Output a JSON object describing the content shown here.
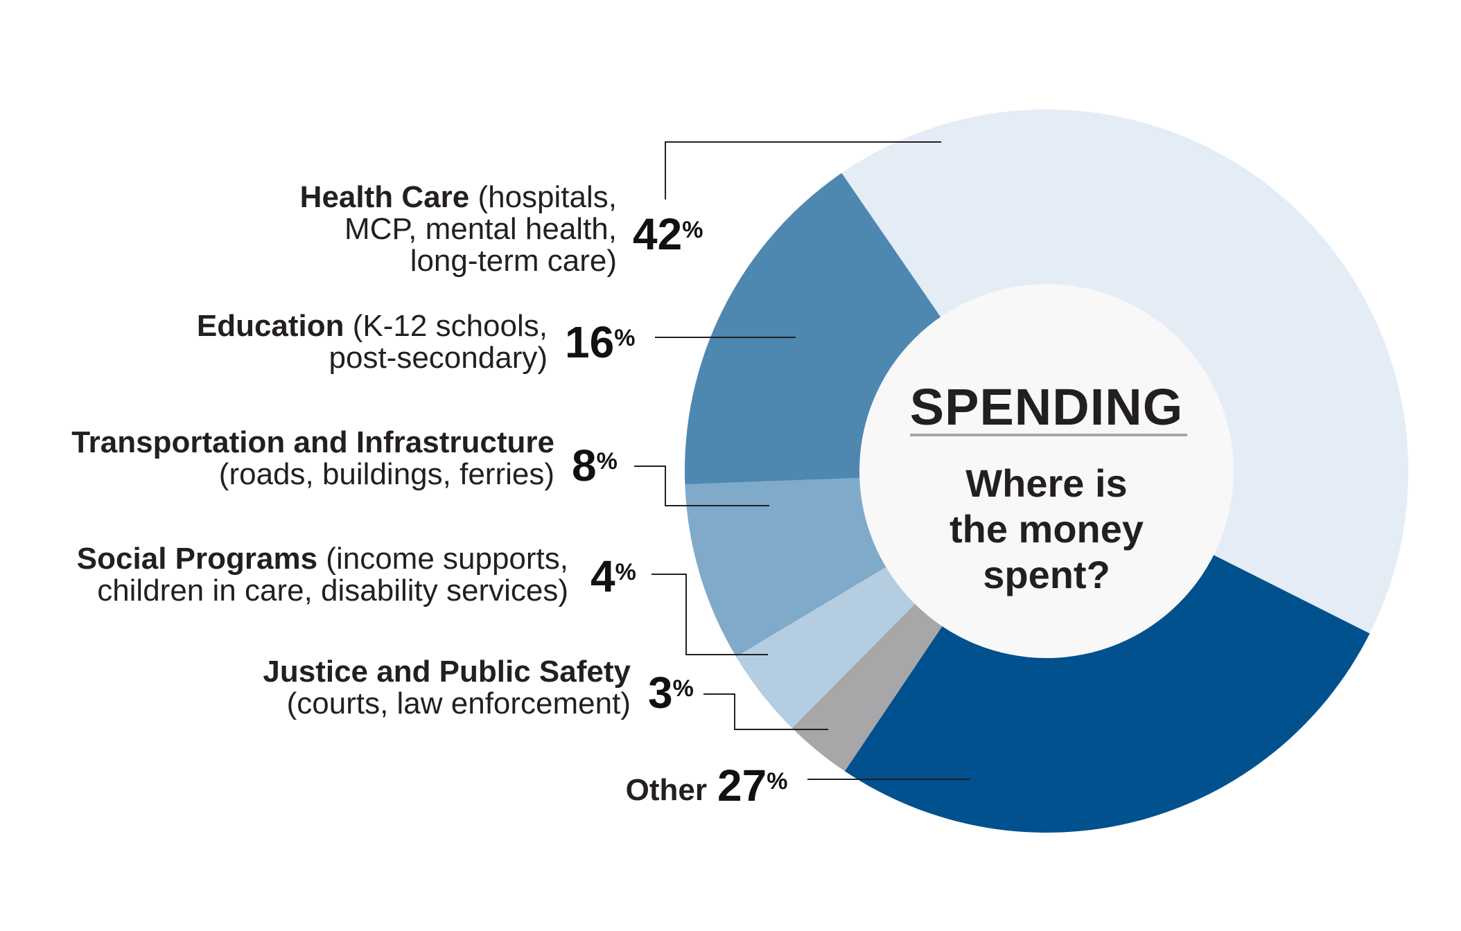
{
  "center": {
    "title": "SPENDING",
    "subtitle_line1": "Where is",
    "subtitle_line2": "the money",
    "subtitle_line3": "spent?"
  },
  "colors": {
    "health": "#e4ecf5",
    "education": "#4e87b0",
    "transport": "#80aac9",
    "social": "#b4cde0",
    "justice": "#a7a6a9",
    "other": "#00518e",
    "hole": "#f8f8f8",
    "divider": "#a7a6a9",
    "leader": "#231f20"
  },
  "chart_data": {
    "type": "pie",
    "title": "SPENDING — Where is the money spent?",
    "unit": "%",
    "slices": [
      {
        "key": "health",
        "name": "Health Care",
        "detail_1": "(hospitals,",
        "detail_2": "MCP, mental health,",
        "detail_3": "long-term care)",
        "value": 42
      },
      {
        "key": "other",
        "name": "Other",
        "value": 27
      },
      {
        "key": "justice",
        "name": "Justice and Public Safety",
        "detail_1": "(courts, law enforcement)",
        "value": 3
      },
      {
        "key": "social",
        "name": "Social Programs",
        "detail_1": "(income supports,",
        "detail_2": "children in care, disability services)",
        "value": 4
      },
      {
        "key": "transport",
        "name": "Transportation and Infrastructure",
        "detail_1": "(roads, buildings, ferries)",
        "value": 8
      },
      {
        "key": "education",
        "name": "Education",
        "detail_1": "(K-12 schools,",
        "detail_2": "post-secondary)",
        "value": 16
      }
    ],
    "pct_symbol": "%"
  }
}
